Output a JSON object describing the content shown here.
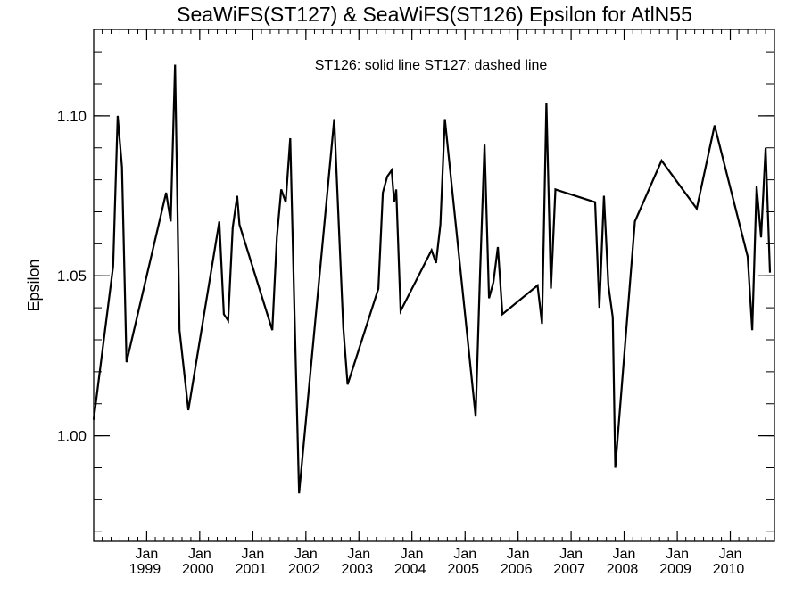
{
  "chart_data": {
    "type": "line",
    "title": "SeaWiFS(ST127) & SeaWiFS(ST126)  Epsilon for AtlN55",
    "annotation": "ST126: solid line   ST127: dashed line",
    "xlabel": "",
    "ylabel": "Epsilon",
    "ylim": [
      0.967,
      1.127
    ],
    "xlim": [
      "1998-01-01",
      "2010-11-01"
    ],
    "y_ticks": [
      "1.00",
      "1.05",
      "1.10"
    ],
    "x_ticks": [
      {
        "month": "Jan",
        "year": "1999",
        "date": "1999-01-01"
      },
      {
        "month": "Jan",
        "year": "2000",
        "date": "2000-01-01"
      },
      {
        "month": "Jan",
        "year": "2001",
        "date": "2001-01-01"
      },
      {
        "month": "Jan",
        "year": "2002",
        "date": "2002-01-01"
      },
      {
        "month": "Jan",
        "year": "2003",
        "date": "2003-01-01"
      },
      {
        "month": "Jan",
        "year": "2004",
        "date": "2004-01-01"
      },
      {
        "month": "Jan",
        "year": "2005",
        "date": "2005-01-01"
      },
      {
        "month": "Jan",
        "year": "2006",
        "date": "2006-01-01"
      },
      {
        "month": "Jan",
        "year": "2007",
        "date": "2007-01-01"
      },
      {
        "month": "Jan",
        "year": "2008",
        "date": "2008-01-01"
      },
      {
        "month": "Jan",
        "year": "2009",
        "date": "2009-01-01"
      },
      {
        "month": "Jan",
        "year": "2010",
        "date": "2010-01-01"
      }
    ],
    "grid": false,
    "line_color": "#000000",
    "series": [
      {
        "style": "solid",
        "x": [
          "1998-01-01",
          "1998-05-15",
          "1998-06-15",
          "1998-07-15",
          "1998-08-15",
          "1999-05-15",
          "1999-06-15",
          "1999-07-15",
          "1999-08-15",
          "1999-10-15",
          "2000-05-15",
          "2000-06-15",
          "2000-07-15",
          "2000-08-15",
          "2000-09-15",
          "2000-10-01",
          "2001-05-15",
          "2001-06-15",
          "2001-07-15",
          "2001-08-15",
          "2001-09-15",
          "2001-10-15",
          "2001-11-15",
          "2002-07-15",
          "2002-09-15",
          "2002-10-15",
          "2003-05-15",
          "2003-06-15",
          "2003-07-15",
          "2003-08-15",
          "2003-09-01",
          "2003-09-15",
          "2003-10-15",
          "2004-05-15",
          "2004-06-15",
          "2004-07-15",
          "2004-08-15",
          "2005-03-15",
          "2005-04-15",
          "2005-05-15",
          "2005-06-15",
          "2005-07-15",
          "2005-08-15",
          "2005-09-15",
          "2006-05-15",
          "2006-06-15",
          "2006-07-15",
          "2006-08-15",
          "2006-09-15",
          "2007-06-15",
          "2007-07-15",
          "2007-08-15",
          "2007-09-15",
          "2007-10-15",
          "2007-11-01",
          "2008-03-15",
          "2008-09-15",
          "2009-05-15",
          "2009-09-15",
          "2010-05-01",
          "2010-06-01",
          "2010-07-01",
          "2010-08-01",
          "2010-09-01",
          "2010-10-01"
        ],
        "y": [
          1.005,
          1.053,
          1.1,
          1.084,
          1.023,
          1.076,
          1.067,
          1.116,
          1.033,
          1.008,
          1.067,
          1.038,
          1.036,
          1.065,
          1.075,
          1.066,
          1.033,
          1.062,
          1.077,
          1.073,
          1.093,
          1.038,
          0.982,
          1.099,
          1.034,
          1.016,
          1.046,
          1.076,
          1.081,
          1.083,
          1.073,
          1.077,
          1.039,
          1.058,
          1.054,
          1.066,
          1.099,
          1.006,
          1.052,
          1.091,
          1.043,
          1.048,
          1.059,
          1.038,
          1.047,
          1.035,
          1.104,
          1.046,
          1.077,
          1.073,
          1.04,
          1.075,
          1.047,
          1.037,
          0.99,
          1.067,
          1.086,
          1.071,
          1.097,
          1.056,
          1.033,
          1.078,
          1.062,
          1.09,
          1.051
        ]
      }
    ]
  }
}
